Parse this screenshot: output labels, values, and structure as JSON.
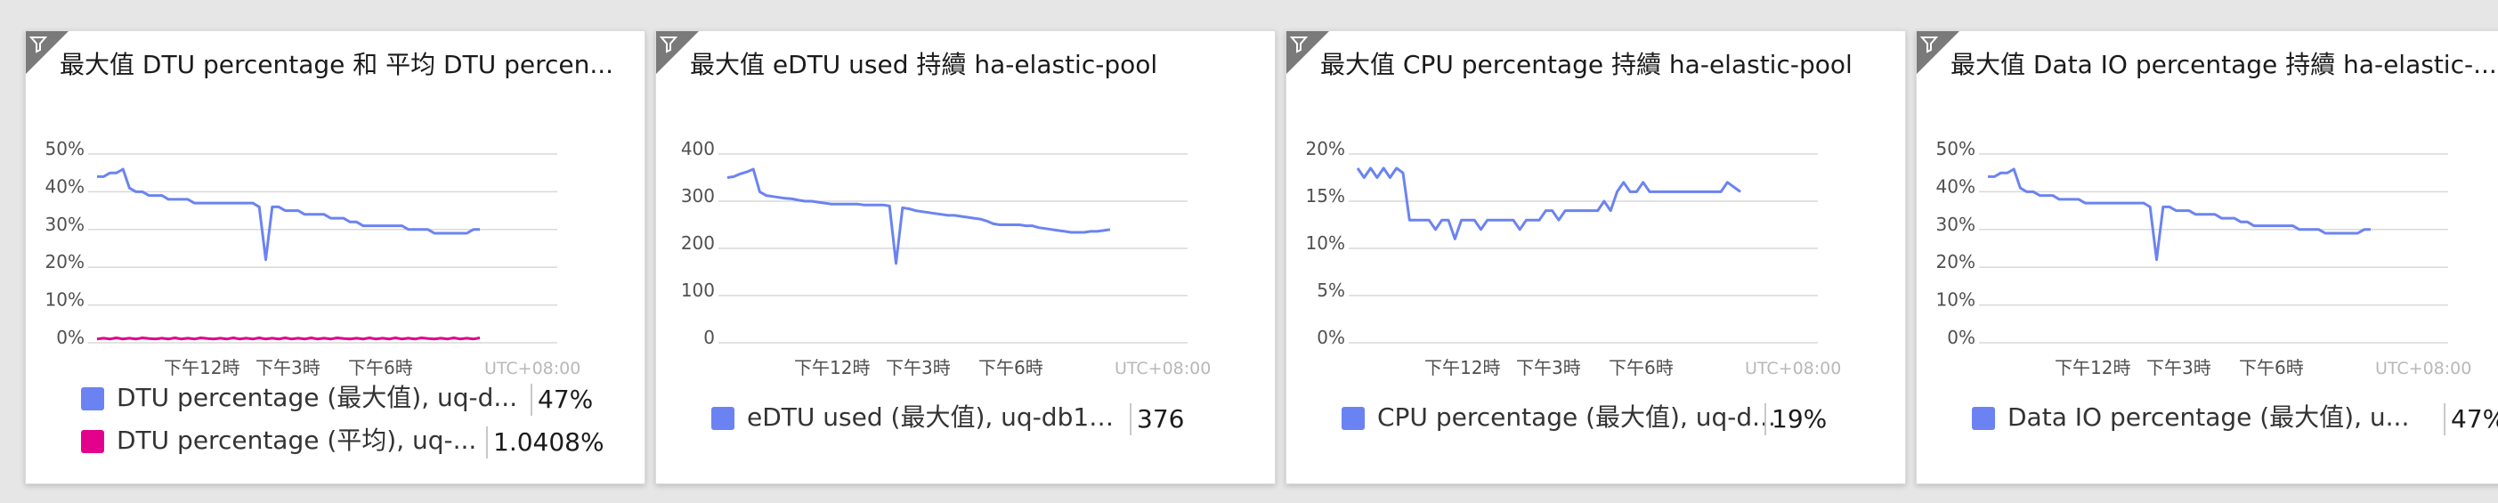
{
  "colors": {
    "blue": "#6b83f2",
    "pink": "#e3008c"
  },
  "icons": {
    "tile_corner": "filter-icon"
  },
  "tiles": [
    {
      "title": "最大值 DTU percentage 和 平均 DTU percen...",
      "legend": [
        {
          "label": "DTU percentage (最大值), uq-d...",
          "value": "47%",
          "color": "#6b83f2"
        },
        {
          "label": "DTU percentage (平均), uq-...",
          "value": "1.0408%",
          "color": "#e3008c"
        }
      ]
    },
    {
      "title": "最大值 eDTU used 持續 ha-elastic-pool",
      "legend": [
        {
          "label": "eDTU used (最大值), uq-db1-v...",
          "value": "376",
          "color": "#6b83f2"
        }
      ]
    },
    {
      "title": "最大值 CPU percentage 持續 ha-elastic-pool",
      "legend": [
        {
          "label": "CPU percentage (最大值), uq-d...",
          "value": "19%",
          "color": "#6b83f2"
        }
      ]
    },
    {
      "title": "最大值 Data IO percentage 持續 ha-elastic-...",
      "legend": [
        {
          "label": "Data IO percentage (最大值), u...",
          "value": "47%",
          "color": "#6b83f2"
        }
      ]
    }
  ],
  "chart_data": [
    {
      "type": "line",
      "title": "最大值 DTU percentage 和 平均 DTU percen...",
      "yticks": [
        "0%",
        "10%",
        "20%",
        "30%",
        "40%",
        "50%"
      ],
      "ylim": [
        0,
        50
      ],
      "xticks": [
        "下午12時",
        "下午3時",
        "下午6時"
      ],
      "timezone": "UTC+08:00",
      "grid": true,
      "legend_position": "bottom",
      "series": [
        {
          "name": "DTU percentage (最大值), uq-d...",
          "color": "#6b83f2",
          "values": [
            44,
            44,
            45,
            45,
            46,
            41,
            40,
            40,
            39,
            39,
            39,
            38,
            38,
            38,
            38,
            37,
            37,
            37,
            37,
            37,
            37,
            37,
            37,
            37,
            37,
            36,
            22,
            36,
            36,
            35,
            35,
            35,
            34,
            34,
            34,
            34,
            33,
            33,
            33,
            32,
            32,
            31,
            31,
            31,
            31,
            31,
            31,
            31,
            30,
            30,
            30,
            30,
            29,
            29,
            29,
            29,
            29,
            29,
            30,
            30
          ]
        },
        {
          "name": "DTU percentage (平均), uq-...",
          "color": "#e3008c",
          "values": [
            1,
            1.2,
            1,
            1.3,
            1,
            1.2,
            1,
            1.3,
            1.1,
            1,
            1.2,
            1,
            1.3,
            1,
            1.2,
            1,
            1.3,
            1.1,
            1,
            1.2,
            1,
            1.3,
            1,
            1.2,
            1,
            1.3,
            1,
            1.2,
            1,
            1.3,
            1,
            1.2,
            1,
            1.3,
            1,
            1.2,
            1,
            1.3,
            1.1,
            1,
            1.2,
            1,
            1.3,
            1,
            1.2,
            1,
            1.3,
            1,
            1.2,
            1,
            1.3,
            1.1,
            1,
            1.2,
            1,
            1.3,
            1,
            1.2,
            1,
            1.3
          ]
        }
      ]
    },
    {
      "type": "line",
      "title": "最大值 eDTU used 持續 ha-elastic-pool",
      "yticks": [
        "0",
        "100",
        "200",
        "300",
        "400"
      ],
      "ylim": [
        0,
        400
      ],
      "xticks": [
        "下午12時",
        "下午3時",
        "下午6時"
      ],
      "timezone": "UTC+08:00",
      "grid": true,
      "legend_position": "bottom",
      "series": [
        {
          "name": "eDTU used (最大值), uq-db1-v...",
          "color": "#6b83f2",
          "values": [
            350,
            352,
            358,
            362,
            368,
            320,
            312,
            310,
            308,
            306,
            305,
            302,
            300,
            300,
            298,
            296,
            294,
            294,
            294,
            294,
            294,
            292,
            292,
            292,
            292,
            290,
            168,
            286,
            284,
            280,
            278,
            276,
            274,
            272,
            270,
            270,
            268,
            266,
            264,
            262,
            258,
            252,
            250,
            250,
            250,
            250,
            248,
            248,
            244,
            242,
            240,
            238,
            236,
            234,
            234,
            234,
            236,
            236,
            238,
            240
          ]
        }
      ]
    },
    {
      "type": "line",
      "title": "最大值 CPU percentage 持續 ha-elastic-pool",
      "yticks": [
        "0%",
        "5%",
        "10%",
        "15%",
        "20%"
      ],
      "ylim": [
        0,
        20
      ],
      "xticks": [
        "下午12時",
        "下午3時",
        "下午6時"
      ],
      "timezone": "UTC+08:00",
      "grid": true,
      "legend_position": "bottom",
      "series": [
        {
          "name": "CPU percentage (最大值), uq-d...",
          "color": "#6b83f2",
          "values": [
            18.5,
            17.5,
            18.5,
            17.5,
            18.5,
            17.5,
            18.5,
            18,
            13,
            13,
            13,
            13,
            12,
            13,
            13,
            11,
            13,
            13,
            13,
            12,
            13,
            13,
            13,
            13,
            13,
            12,
            13,
            13,
            13,
            14,
            14,
            13,
            14,
            14,
            14,
            14,
            14,
            14,
            15,
            14,
            16,
            17,
            16,
            16,
            17,
            16,
            16,
            16,
            16,
            16,
            16,
            16,
            16,
            16,
            16,
            16,
            16,
            17,
            16.5,
            16
          ]
        }
      ]
    },
    {
      "type": "line",
      "title": "最大值 Data IO percentage 持續 ha-elastic-...",
      "yticks": [
        "0%",
        "10%",
        "20%",
        "30%",
        "40%",
        "50%"
      ],
      "ylim": [
        0,
        50
      ],
      "xticks": [
        "下午12時",
        "下午3時",
        "下午6時"
      ],
      "timezone": "UTC+08:00",
      "grid": true,
      "legend_position": "bottom",
      "series": [
        {
          "name": "Data IO percentage (最大值), u...",
          "color": "#6b83f2",
          "values": [
            44,
            44,
            45,
            45,
            46,
            41,
            40,
            40,
            39,
            39,
            39,
            38,
            38,
            38,
            38,
            37,
            37,
            37,
            37,
            37,
            37,
            37,
            37,
            37,
            37,
            36,
            22,
            36,
            36,
            35,
            35,
            35,
            34,
            34,
            34,
            34,
            33,
            33,
            33,
            32,
            32,
            31,
            31,
            31,
            31,
            31,
            31,
            31,
            30,
            30,
            30,
            30,
            29,
            29,
            29,
            29,
            29,
            29,
            30,
            30
          ]
        }
      ]
    }
  ]
}
